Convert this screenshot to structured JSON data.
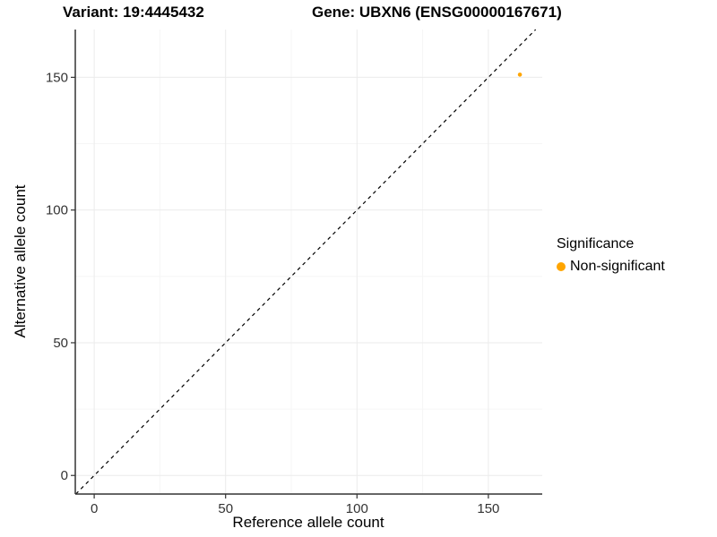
{
  "chart_data": {
    "type": "scatter",
    "title_left": "Variant: 19:4445432",
    "title_right": "Gene: UBXN6 (ENSG00000167671)",
    "xlabel": "Reference allele count",
    "ylabel": "Alternative allele count",
    "x_ticks": [
      0,
      50,
      100,
      150
    ],
    "y_ticks": [
      0,
      50,
      100,
      150
    ],
    "x_minor_ticks": [
      25,
      75,
      125
    ],
    "y_minor_ticks": [
      25,
      75,
      125
    ],
    "xlim": [
      -7.2,
      170.5
    ],
    "ylim": [
      -7,
      168
    ],
    "grid": "major+minor",
    "series": [
      {
        "name": "Non-significant",
        "color": "#FFA500",
        "points": [
          {
            "x": 162,
            "y": 151
          }
        ]
      }
    ],
    "reference_line": {
      "style": "dashed",
      "slope": 1,
      "intercept": 0,
      "color": "#000000"
    },
    "legend": {
      "title": "Significance",
      "position": "right",
      "items": [
        {
          "label": "Non-significant",
          "color": "#FFA500"
        }
      ]
    }
  },
  "colors": {
    "background": "#FFFFFF",
    "grid_major": "#EBEBEB",
    "grid_minor": "#F6F6F6",
    "axis": "#333333",
    "tick_label": "#333333",
    "text": "#000000"
  }
}
